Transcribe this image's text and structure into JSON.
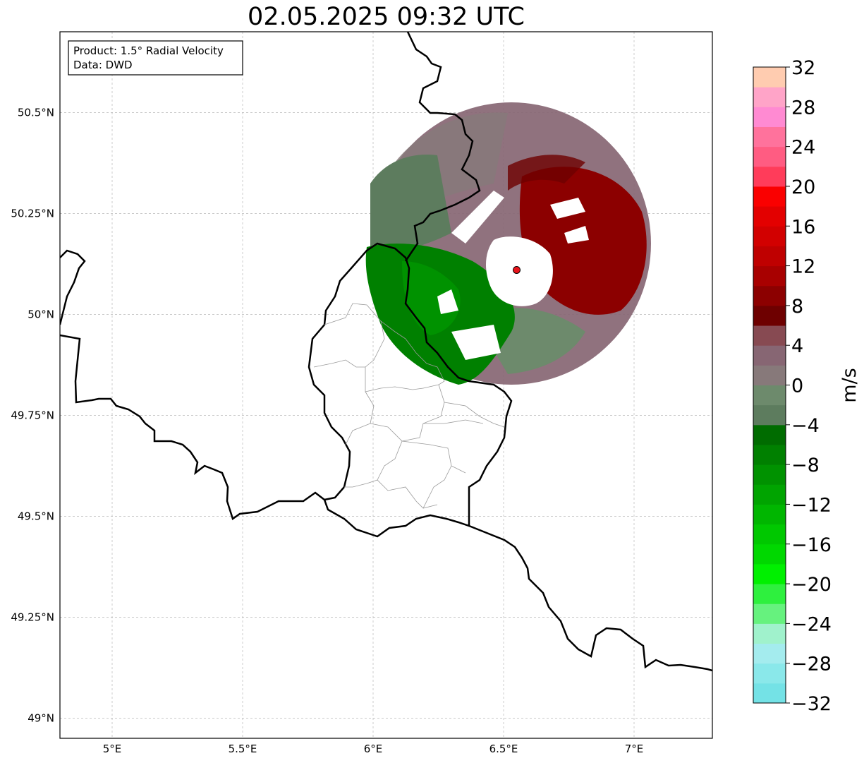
{
  "title": "02.05.2025 09:32 UTC",
  "info_box": {
    "product": "Product: 1.5° Radial Velocity",
    "data": "Data: DWD"
  },
  "map": {
    "lon_range": [
      4.8,
      7.3
    ],
    "lat_range": [
      48.95,
      50.7
    ],
    "x_ticks": [
      {
        "value": 5.0,
        "label": "5°E"
      },
      {
        "value": 5.5,
        "label": "5.5°E"
      },
      {
        "value": 6.0,
        "label": "6°E"
      },
      {
        "value": 6.5,
        "label": "6.5°E"
      },
      {
        "value": 7.0,
        "label": "7°E"
      }
    ],
    "y_ticks": [
      {
        "value": 49.0,
        "label": "49°N"
      },
      {
        "value": 49.25,
        "label": "49.25°N"
      },
      {
        "value": 49.5,
        "label": "49.5°N"
      },
      {
        "value": 49.75,
        "label": "49.75°N"
      },
      {
        "value": 50.0,
        "label": "50°N"
      },
      {
        "value": 50.25,
        "label": "50.25°N"
      },
      {
        "value": 50.5,
        "label": "50.5°N"
      }
    ],
    "radar_site": {
      "lon": 6.55,
      "lat": 50.11,
      "color": "#e8141b"
    },
    "grid": true
  },
  "colorbar": {
    "unit": "m/s",
    "min": -32,
    "max": 32,
    "step": 4,
    "tick_labels": [
      "32",
      "28",
      "24",
      "20",
      "16",
      "12",
      "8",
      "4",
      "0",
      "−4",
      "−8",
      "−12",
      "−16",
      "−20",
      "−24",
      "−28",
      "−32"
    ],
    "colors_bottom_to_top": [
      "#74e2e6",
      "#8ae8ea",
      "#a4ecee",
      "#a0f2cc",
      "#66f27e",
      "#2ef03e",
      "#00f000",
      "#00d800",
      "#00c800",
      "#00b600",
      "#00a400",
      "#009200",
      "#008000",
      "#006c00",
      "#5d7c5e",
      "#6d8a6c",
      "#87797a",
      "#876673",
      "#874a52",
      "#6e0000",
      "#8c0000",
      "#a80000",
      "#bf0000",
      "#d20000",
      "#e30000",
      "#fa0000",
      "#ff3c5a",
      "#ff5c82",
      "#ff729c",
      "#ff8ad2",
      "#ffa4c8",
      "#ffccb0"
    ]
  }
}
